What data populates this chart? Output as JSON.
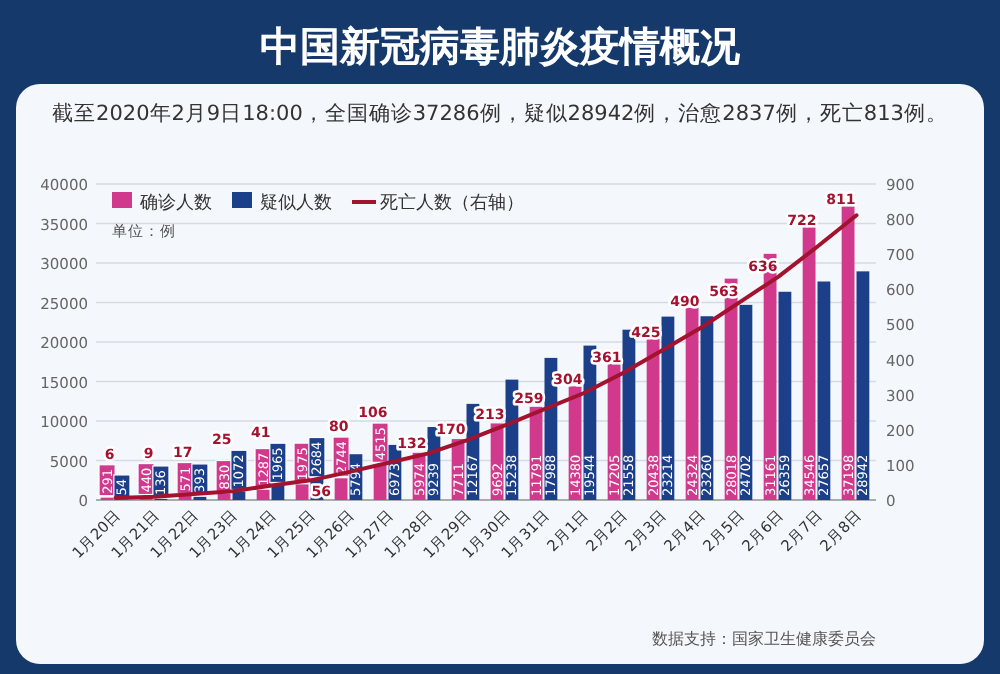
{
  "chart_data": {
    "type": "bar",
    "title": "中国新冠病毒肺炎疫情概况",
    "subtitle": "截至2020年2月9日18:00，全国确诊37286例，疑似28942例，治愈2837例，死亡813例。",
    "categories": [
      "1月20日",
      "1月21日",
      "1月22日",
      "1月23日",
      "1月24日",
      "1月25日",
      "1月26日",
      "1月27日",
      "1月28日",
      "1月29日",
      "1月30日",
      "1月31日",
      "2月1日",
      "2月2日",
      "2月3日",
      "2月4日",
      "2月5日",
      "2月6日",
      "2月7日",
      "2月8日"
    ],
    "series": [
      {
        "name": "确诊人数",
        "color": "#d13a8c",
        "values": [
          291,
          440,
          571,
          830,
          1287,
          1975,
          2744,
          4515,
          5974,
          7711,
          9692,
          11791,
          14380,
          17205,
          20438,
          24324,
          28018,
          31161,
          34546,
          37198
        ]
      },
      {
        "name": "疑似人数",
        "color": "#1c3f8a",
        "values": [
          54,
          136,
          393,
          1072,
          1965,
          2684,
          5794,
          6973,
          9239,
          12167,
          15238,
          17988,
          19544,
          21558,
          23214,
          23260,
          24702,
          26359,
          27657,
          28942
        ]
      },
      {
        "name": "死亡人数（右轴）",
        "type": "line",
        "axis": "y2",
        "color": "#a3122e",
        "values": [
          6,
          9,
          17,
          25,
          41,
          56,
          80,
          106,
          132,
          170,
          213,
          259,
          304,
          361,
          425,
          490,
          563,
          636,
          722,
          811
        ]
      }
    ],
    "ylim": [
      0,
      40000
    ],
    "yticks": [
      0,
      5000,
      10000,
      15000,
      20000,
      25000,
      30000,
      35000,
      40000
    ],
    "y2lim": [
      0,
      900
    ],
    "y2ticks": [
      0,
      100,
      200,
      300,
      400,
      500,
      600,
      700,
      800,
      900
    ],
    "grid": "y",
    "legend": "top left",
    "data_labels": true,
    "annotations": [
      "单位：例",
      "数据支持：国家卫生健康委员会"
    ]
  }
}
